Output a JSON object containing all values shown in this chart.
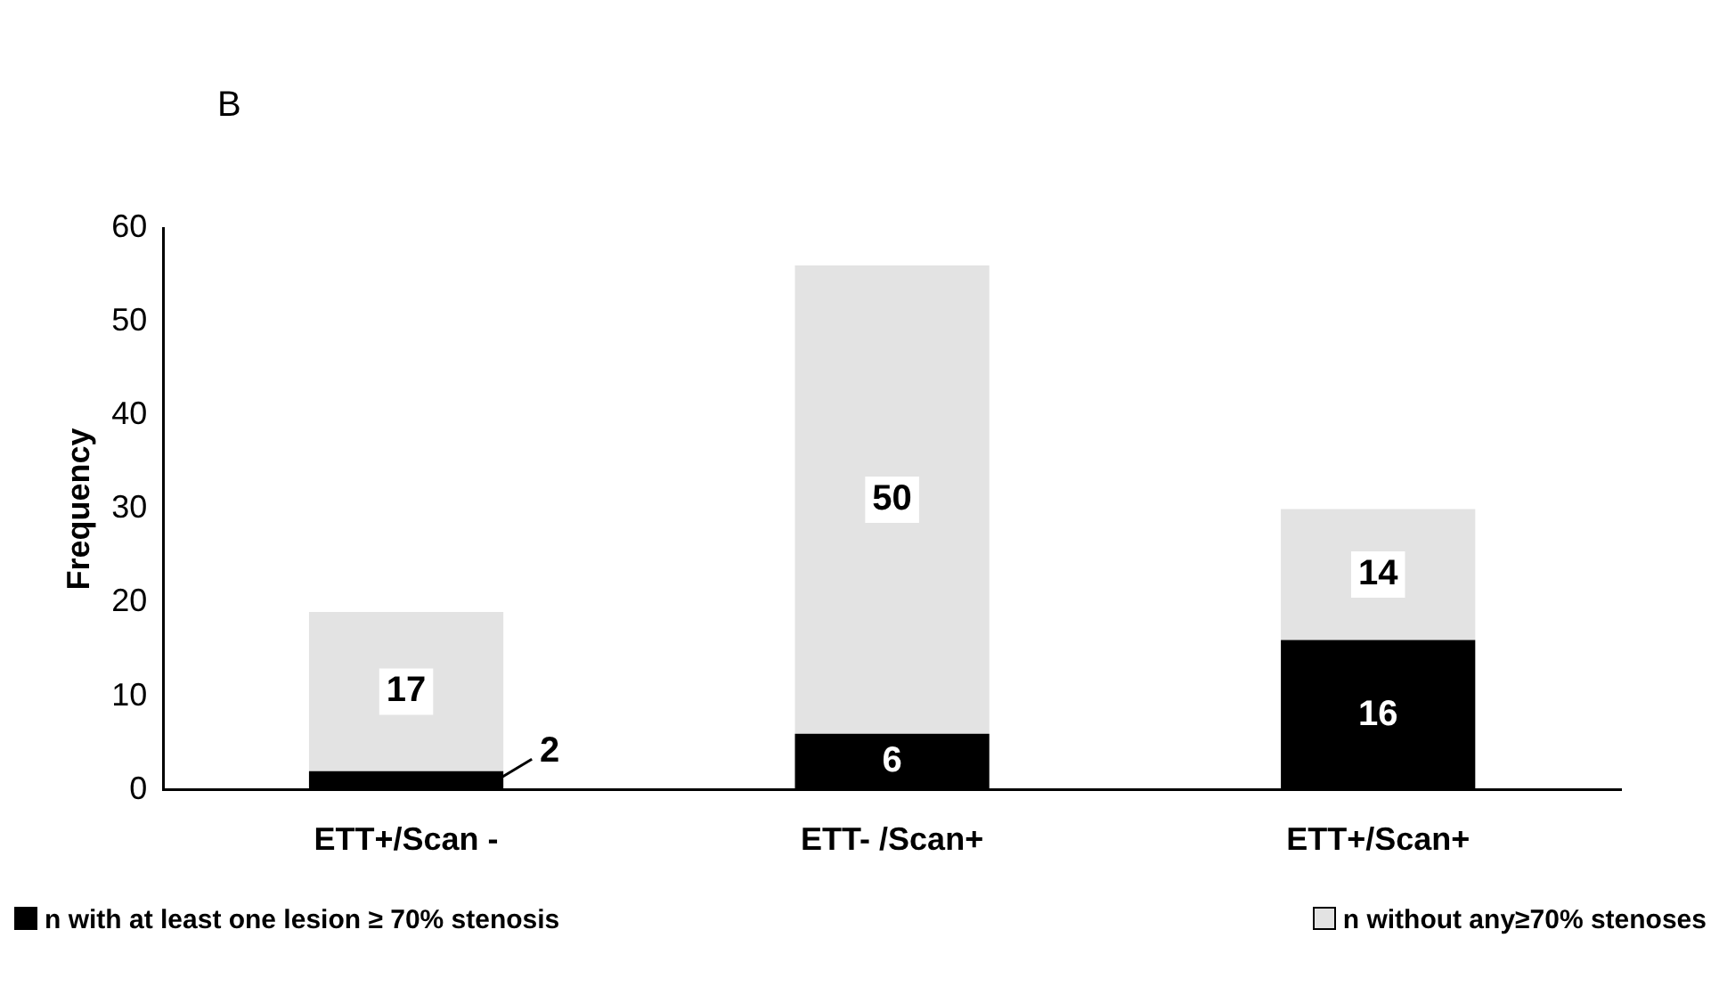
{
  "chart_data": {
    "type": "bar",
    "title": "B",
    "ylabel": "Frequency",
    "categories": [
      "ETT+/Scan -",
      "ETT- /Scan+",
      "ETT+/Scan+"
    ],
    "stacked": true,
    "series": [
      {
        "name": "n with at least one lesion ≥  70% stenosis",
        "color": "#000000",
        "values": [
          2,
          6,
          16
        ]
      },
      {
        "name": "n without any≥70% stenoses",
        "color": "#e3e3e3",
        "values": [
          17,
          50,
          14
        ]
      }
    ],
    "ylim": [
      0,
      60
    ],
    "yticks": [
      0,
      10,
      20,
      30,
      40,
      50,
      60
    ],
    "grid": false,
    "legend": "bottom",
    "data_labels": true
  }
}
